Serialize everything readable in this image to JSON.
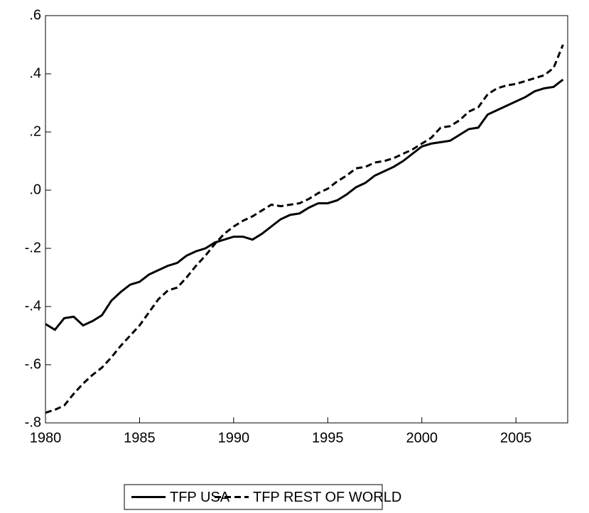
{
  "chart_data": {
    "type": "line",
    "x": [
      1980,
      1980.5,
      1981,
      1981.5,
      1982,
      1982.5,
      1983,
      1983.5,
      1984,
      1984.5,
      1985,
      1985.5,
      1986,
      1986.5,
      1987,
      1987.5,
      1988,
      1988.5,
      1989,
      1989.5,
      1990,
      1990.5,
      1991,
      1991.5,
      1992,
      1992.5,
      1993,
      1993.5,
      1994,
      1994.5,
      1995,
      1995.5,
      1996,
      1996.5,
      1997,
      1997.5,
      1998,
      1998.5,
      1999,
      1999.5,
      2000,
      2000.5,
      2001,
      2001.5,
      2002,
      2002.5,
      2003,
      2003.5,
      2004,
      2004.5,
      2005,
      2005.5,
      2006,
      2006.5,
      2007,
      2007.5
    ],
    "series": [
      {
        "name": "TFP USA",
        "color": "#000000",
        "line_style": "solid",
        "values": [
          -0.46,
          -0.48,
          -0.44,
          -0.435,
          -0.465,
          -0.45,
          -0.43,
          -0.38,
          -0.35,
          -0.325,
          -0.315,
          -0.29,
          -0.275,
          -0.26,
          -0.25,
          -0.225,
          -0.21,
          -0.2,
          -0.18,
          -0.17,
          -0.16,
          -0.16,
          -0.17,
          -0.15,
          -0.125,
          -0.1,
          -0.085,
          -0.08,
          -0.06,
          -0.045,
          -0.045,
          -0.035,
          -0.015,
          0.01,
          0.025,
          0.05,
          0.065,
          0.08,
          0.1,
          0.125,
          0.15,
          0.16,
          0.165,
          0.17,
          0.19,
          0.21,
          0.215,
          0.26,
          0.275,
          0.29,
          0.305,
          0.32,
          0.34,
          0.35,
          0.355,
          0.38
        ]
      },
      {
        "name": "TFP REST OF WORLD",
        "color": "#000000",
        "line_style": "dashed",
        "values": [
          -0.765,
          -0.755,
          -0.74,
          -0.7,
          -0.665,
          -0.635,
          -0.61,
          -0.575,
          -0.535,
          -0.5,
          -0.465,
          -0.42,
          -0.375,
          -0.345,
          -0.335,
          -0.3,
          -0.26,
          -0.225,
          -0.185,
          -0.15,
          -0.125,
          -0.105,
          -0.09,
          -0.07,
          -0.05,
          -0.055,
          -0.05,
          -0.045,
          -0.03,
          -0.01,
          0.005,
          0.03,
          0.05,
          0.075,
          0.08,
          0.095,
          0.1,
          0.11,
          0.125,
          0.14,
          0.16,
          0.18,
          0.215,
          0.22,
          0.24,
          0.27,
          0.285,
          0.33,
          0.35,
          0.36,
          0.365,
          0.375,
          0.385,
          0.395,
          0.42,
          0.5
        ]
      }
    ],
    "xlim": [
      1980,
      2007.75
    ],
    "xticks": [
      1980,
      1985,
      1990,
      1995,
      2000,
      2005
    ],
    "ylim": [
      -0.8,
      0.6
    ],
    "yticks": [
      {
        "value": -0.8,
        "label": "-.8"
      },
      {
        "value": -0.6,
        "label": "-.6"
      },
      {
        "value": -0.4,
        "label": "-.4"
      },
      {
        "value": -0.2,
        "label": "-.2"
      },
      {
        "value": 0,
        "label": ".0"
      },
      {
        "value": 0.2,
        "label": ".2"
      },
      {
        "value": 0.4,
        "label": ".4"
      },
      {
        "value": 0.6,
        "label": ".6"
      }
    ],
    "legend": "bottom"
  }
}
